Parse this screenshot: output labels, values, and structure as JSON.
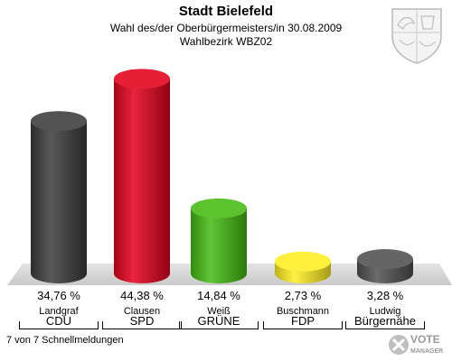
{
  "header": {
    "title": "Stadt Bielefeld",
    "subtitle": "Wahl des/der Oberbürgermeisters/in 30.08.2009",
    "district": "Wahlbezirk WBZ02"
  },
  "footer": {
    "status": "7 von 7 Schnellmeldungen"
  },
  "logo": {
    "line1": "VOTE",
    "line2": "MANAGER"
  },
  "chart_data": {
    "type": "bar",
    "title": "Stadt Bielefeld",
    "categories": [
      "CDU",
      "SPD",
      "GRÜNE",
      "FDP",
      "Bürgernähe"
    ],
    "candidates": [
      "Landgraf",
      "Clausen",
      "Weiß",
      "Buschmann",
      "Ludwig"
    ],
    "values": [
      34.76,
      44.38,
      14.84,
      2.73,
      3.28
    ],
    "value_labels": [
      "34,76 %",
      "44,38 %",
      "14,84 %",
      "2,73 %",
      "3,28 %"
    ],
    "colors": [
      "#3c3c3c",
      "#e3001b",
      "#44bb11",
      "#ffee22",
      "#505050"
    ],
    "ylim": [
      0,
      50
    ],
    "grid": false,
    "legend": "none"
  }
}
